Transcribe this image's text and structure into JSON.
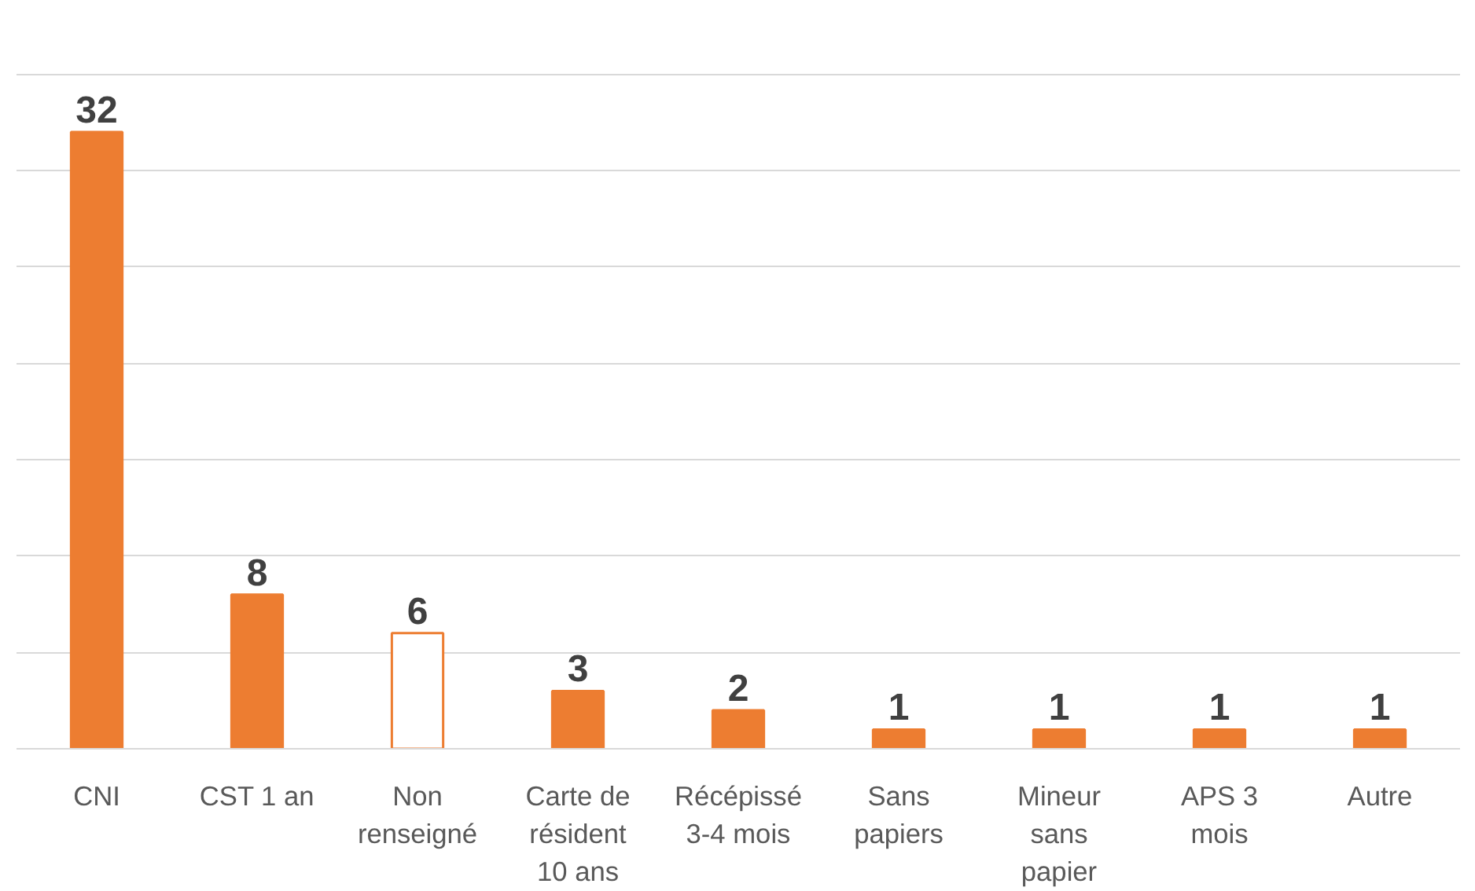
{
  "chart_data": {
    "type": "bar",
    "categories": [
      "CNI",
      "CST 1 an",
      "Non renseigné",
      "Carte de résident 10 ans",
      "Récépissé 3-4 mois",
      "Sans papiers",
      "Mineur sans papier",
      "APS 3 mois",
      "Autre"
    ],
    "values": [
      32,
      8,
      6,
      3,
      2,
      1,
      1,
      1,
      1
    ],
    "color": "#ed7d31",
    "colors": [
      "#ed7d31",
      "#ed7d31",
      "#ffffff",
      "#ed7d31",
      "#ed7d31",
      "#ed7d31",
      "#ed7d31",
      "#ed7d31",
      "#ed7d31"
    ],
    "ylim": [
      0,
      35
    ],
    "yticks": [
      {
        "value": 0,
        "label": null
      },
      {
        "value": 5,
        "label": null
      },
      {
        "value": 10,
        "label": null
      },
      {
        "value": 15,
        "label": null
      },
      {
        "value": 20,
        "label": null
      },
      {
        "value": 25,
        "label": null
      },
      {
        "value": 30,
        "label": null
      },
      {
        "value": 35,
        "label": null
      }
    ],
    "grid": "y",
    "tick_labels": "x",
    "data_labels": true
  }
}
